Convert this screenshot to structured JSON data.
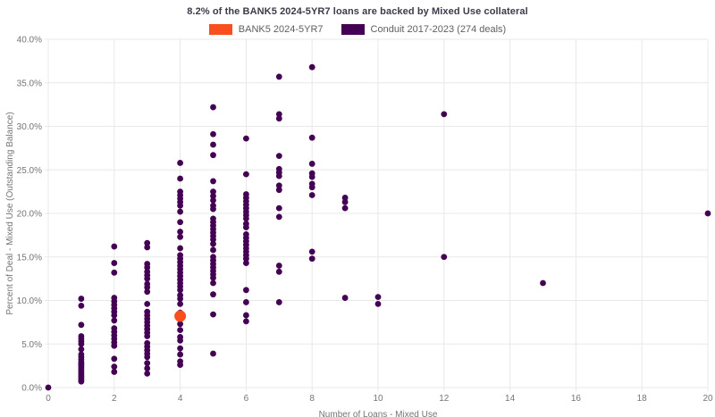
{
  "chart": {
    "title": "8.2% of the BANK5 2024-5YR7 loans are backed by Mixed Use collateral",
    "xlabel": "Number of Loans - Mixed Use",
    "ylabel": "Percent of Deal - Mixed Use (Outstanding Balance)"
  },
  "legend": {
    "items": [
      {
        "label": "BANK5 2024-5YR7",
        "color": "#FB4E1E"
      },
      {
        "label": "Conduit 2017-2023 (274 deals)",
        "color": "#440154"
      }
    ]
  },
  "chart_data": {
    "type": "scatter",
    "title": "8.2% of the BANK5 2024-5YR7 loans are backed by Mixed Use collateral",
    "xlabel": "Number of Loans - Mixed Use",
    "ylabel": "Percent of Deal - Mixed Use (Outstanding Balance)",
    "xlim": [
      0,
      20
    ],
    "ylim": [
      0,
      40
    ],
    "x_ticks": [
      0,
      2,
      4,
      6,
      8,
      10,
      12,
      14,
      16,
      18,
      20
    ],
    "x_tick_labels": [
      "0",
      "2",
      "4",
      "6",
      "8",
      "10",
      "12",
      "14",
      "16",
      "18",
      "20"
    ],
    "y_ticks": [
      0,
      5,
      10,
      15,
      20,
      25,
      30,
      35,
      40
    ],
    "y_tick_labels": [
      "0.0%",
      "5.0%",
      "10.0%",
      "15.0%",
      "20.0%",
      "25.0%",
      "30.0%",
      "35.0%",
      "40.0%"
    ],
    "grid": true,
    "grid_color": "#e8e8e8",
    "tick_color": "#757575",
    "axis_title_color": "#757575",
    "background": "#ffffff",
    "legend_position": "top",
    "series": [
      {
        "id": "bank5",
        "name": "BANK5 2024-5YR7",
        "color": "#FB4E1E",
        "marker_size": 13,
        "points": [
          [
            4,
            8.2
          ]
        ]
      },
      {
        "id": "conduit",
        "name": "Conduit 2017-2023 (274 deals)",
        "color": "#440154",
        "marker_size": 6.8,
        "points": [
          [
            0,
            0.0
          ],
          [
            1,
            10.2
          ],
          [
            1,
            9.4
          ],
          [
            1,
            7.2
          ],
          [
            1,
            5.9
          ],
          [
            1,
            5.6
          ],
          [
            1,
            5.3
          ],
          [
            1,
            5.0
          ],
          [
            1,
            4.4
          ],
          [
            1,
            3.8
          ],
          [
            1,
            3.5
          ],
          [
            1,
            3.2
          ],
          [
            1,
            2.9
          ],
          [
            1,
            2.7
          ],
          [
            1,
            2.5
          ],
          [
            1,
            2.3
          ],
          [
            1,
            2.1
          ],
          [
            1,
            1.9
          ],
          [
            1,
            1.7
          ],
          [
            1,
            1.5
          ],
          [
            1,
            1.3
          ],
          [
            1,
            1.1
          ],
          [
            1,
            0.9
          ],
          [
            1,
            0.7
          ],
          [
            2,
            16.2
          ],
          [
            2,
            14.3
          ],
          [
            2,
            13.2
          ],
          [
            2,
            10.3
          ],
          [
            2,
            9.9
          ],
          [
            2,
            9.5
          ],
          [
            2,
            9.1
          ],
          [
            2,
            8.7
          ],
          [
            2,
            8.3
          ],
          [
            2,
            7.7
          ],
          [
            2,
            6.8
          ],
          [
            2,
            6.4
          ],
          [
            2,
            6.0
          ],
          [
            2,
            5.6
          ],
          [
            2,
            5.2
          ],
          [
            2,
            4.8
          ],
          [
            2,
            3.3
          ],
          [
            2,
            2.4
          ],
          [
            2,
            1.8
          ],
          [
            3,
            16.6
          ],
          [
            3,
            16.1
          ],
          [
            3,
            14.2
          ],
          [
            3,
            13.8
          ],
          [
            3,
            13.3
          ],
          [
            3,
            12.9
          ],
          [
            3,
            12.5
          ],
          [
            3,
            11.9
          ],
          [
            3,
            11.5
          ],
          [
            3,
            11.0
          ],
          [
            3,
            9.6
          ],
          [
            3,
            8.7
          ],
          [
            3,
            8.3
          ],
          [
            3,
            7.9
          ],
          [
            3,
            7.5
          ],
          [
            3,
            7.1
          ],
          [
            3,
            6.7
          ],
          [
            3,
            6.3
          ],
          [
            3,
            5.9
          ],
          [
            3,
            5.1
          ],
          [
            3,
            4.7
          ],
          [
            3,
            4.3
          ],
          [
            3,
            3.9
          ],
          [
            3,
            3.5
          ],
          [
            3,
            2.8
          ],
          [
            3,
            2.2
          ],
          [
            3,
            1.6
          ],
          [
            4,
            25.8
          ],
          [
            4,
            24.0
          ],
          [
            4,
            22.5
          ],
          [
            4,
            22.1
          ],
          [
            4,
            21.7
          ],
          [
            4,
            21.3
          ],
          [
            4,
            20.9
          ],
          [
            4,
            20.2
          ],
          [
            4,
            19.0
          ],
          [
            4,
            17.9
          ],
          [
            4,
            17.3
          ],
          [
            4,
            16.0
          ],
          [
            4,
            15.2
          ],
          [
            4,
            14.8
          ],
          [
            4,
            14.4
          ],
          [
            4,
            14.0
          ],
          [
            4,
            13.6
          ],
          [
            4,
            13.2
          ],
          [
            4,
            12.8
          ],
          [
            4,
            12.4
          ],
          [
            4,
            12.0
          ],
          [
            4,
            11.6
          ],
          [
            4,
            11.2
          ],
          [
            4,
            10.6
          ],
          [
            4,
            10.2
          ],
          [
            4,
            9.6
          ],
          [
            4,
            8.6
          ],
          [
            4,
            7.3
          ],
          [
            4,
            6.6
          ],
          [
            4,
            5.8
          ],
          [
            4,
            5.4
          ],
          [
            4,
            4.5
          ],
          [
            4,
            3.8
          ],
          [
            4,
            3.0
          ],
          [
            4,
            2.6
          ],
          [
            5,
            32.2
          ],
          [
            5,
            29.1
          ],
          [
            5,
            27.9
          ],
          [
            5,
            26.7
          ],
          [
            5,
            23.7
          ],
          [
            5,
            22.5
          ],
          [
            5,
            22.0
          ],
          [
            5,
            21.5
          ],
          [
            5,
            20.9
          ],
          [
            5,
            20.5
          ],
          [
            5,
            19.4
          ],
          [
            5,
            19.0
          ],
          [
            5,
            18.6
          ],
          [
            5,
            18.2
          ],
          [
            5,
            17.8
          ],
          [
            5,
            17.4
          ],
          [
            5,
            17.0
          ],
          [
            5,
            16.5
          ],
          [
            5,
            15.8
          ],
          [
            5,
            15.0
          ],
          [
            5,
            14.6
          ],
          [
            5,
            14.2
          ],
          [
            5,
            13.8
          ],
          [
            5,
            13.4
          ],
          [
            5,
            13.0
          ],
          [
            5,
            12.6
          ],
          [
            5,
            12.0
          ],
          [
            5,
            10.7
          ],
          [
            5,
            8.4
          ],
          [
            5,
            3.9
          ],
          [
            6,
            28.6
          ],
          [
            6,
            24.5
          ],
          [
            6,
            22.2
          ],
          [
            6,
            21.8
          ],
          [
            6,
            21.4
          ],
          [
            6,
            21.0
          ],
          [
            6,
            20.6
          ],
          [
            6,
            20.2
          ],
          [
            6,
            19.8
          ],
          [
            6,
            19.4
          ],
          [
            6,
            18.8
          ],
          [
            6,
            18.4
          ],
          [
            6,
            17.6
          ],
          [
            6,
            17.2
          ],
          [
            6,
            16.8
          ],
          [
            6,
            16.4
          ],
          [
            6,
            16.0
          ],
          [
            6,
            15.6
          ],
          [
            6,
            15.2
          ],
          [
            6,
            14.8
          ],
          [
            6,
            14.3
          ],
          [
            6,
            11.2
          ],
          [
            6,
            9.8
          ],
          [
            6,
            8.3
          ],
          [
            6,
            7.6
          ],
          [
            7,
            35.7
          ],
          [
            7,
            31.4
          ],
          [
            7,
            30.9
          ],
          [
            7,
            26.6
          ],
          [
            7,
            25.1
          ],
          [
            7,
            24.7
          ],
          [
            7,
            24.3
          ],
          [
            7,
            23.2
          ],
          [
            7,
            22.7
          ],
          [
            7,
            20.6
          ],
          [
            7,
            19.6
          ],
          [
            7,
            14.0
          ],
          [
            7,
            13.3
          ],
          [
            7,
            9.8
          ],
          [
            8,
            36.8
          ],
          [
            8,
            28.7
          ],
          [
            8,
            25.7
          ],
          [
            8,
            24.6
          ],
          [
            8,
            24.2
          ],
          [
            8,
            23.4
          ],
          [
            8,
            23.0
          ],
          [
            8,
            22.1
          ],
          [
            8,
            15.6
          ],
          [
            8,
            14.8
          ],
          [
            9,
            21.8
          ],
          [
            9,
            21.3
          ],
          [
            9,
            20.6
          ],
          [
            9,
            10.3
          ],
          [
            10,
            10.4
          ],
          [
            10,
            9.6
          ],
          [
            12,
            31.4
          ],
          [
            12,
            15.0
          ],
          [
            15,
            12.0
          ],
          [
            20,
            20.0
          ]
        ]
      }
    ]
  }
}
